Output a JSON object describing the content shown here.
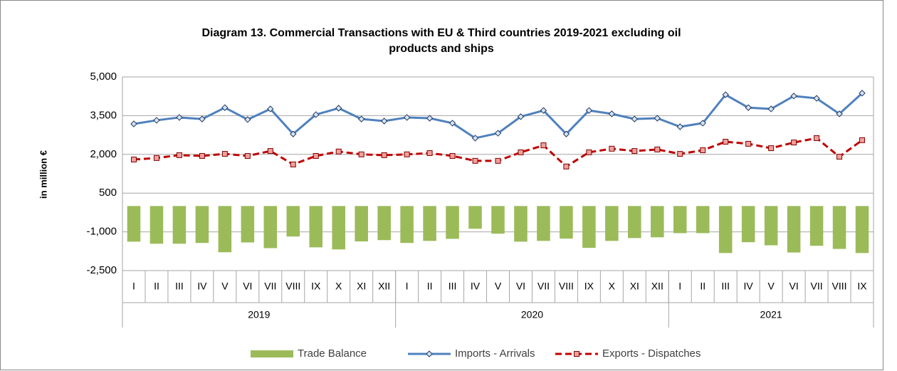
{
  "chart_data": {
    "type": "bar",
    "title": "Diagram 13. Commercial Transactions with EU & Third countries 2019-2021  excluding oil products and ships",
    "ylabel": "in million €",
    "category_groups": [
      {
        "label": "2019",
        "categories": [
          "I",
          "II",
          "III",
          "IV",
          "V",
          "VI",
          "VII",
          "VIII",
          "IX",
          "X",
          "XI",
          "XII"
        ]
      },
      {
        "label": "2020",
        "categories": [
          "I",
          "II",
          "III",
          "IV",
          "V",
          "VI",
          "VII",
          "VIII",
          "IX",
          "X",
          "XI",
          "XII"
        ]
      },
      {
        "label": "2021",
        "categories": [
          "I",
          "II",
          "III",
          "IV",
          "V",
          "VI",
          "VII",
          "VIII",
          "IX"
        ]
      }
    ],
    "ylim": [
      -2500,
      5000
    ],
    "yticks": [
      {
        "value": -2500,
        "label": "-2,500"
      },
      {
        "value": -1000,
        "label": "-1,000"
      },
      500,
      {
        "value": 2000,
        "label": "2,000"
      },
      {
        "value": 3500,
        "label": "3,500"
      },
      {
        "value": 5000,
        "label": "5,000"
      }
    ],
    "grid": true,
    "legend": "bottom",
    "series": [
      {
        "name": "Trade Balance",
        "type": "bar",
        "color": "#9bbb59",
        "values": [
          -1380,
          -1460,
          -1460,
          -1430,
          -1790,
          -1410,
          -1630,
          -1180,
          -1600,
          -1680,
          -1370,
          -1320,
          -1430,
          -1350,
          -1270,
          -880,
          -1070,
          -1380,
          -1350,
          -1260,
          -1620,
          -1350,
          -1240,
          -1210,
          -1050,
          -1050,
          -1820,
          -1400,
          -1520,
          -1800,
          -1540,
          -1660,
          -1820
        ]
      },
      {
        "name": "Imports - Arrivals",
        "type": "line",
        "color": "#4f81bd",
        "values": [
          3180,
          3320,
          3430,
          3370,
          3810,
          3350,
          3760,
          2790,
          3540,
          3790,
          3370,
          3290,
          3430,
          3400,
          3210,
          2630,
          2820,
          3460,
          3700,
          2790,
          3700,
          3570,
          3370,
          3400,
          3070,
          3210,
          4310,
          3810,
          3760,
          4260,
          4170,
          3570,
          4370
        ]
      },
      {
        "name": "Exports - Dispatches",
        "type": "dashed-line",
        "color": "#c00000",
        "values": [
          1800,
          1860,
          1970,
          1940,
          2020,
          1940,
          2130,
          1610,
          1940,
          2110,
          2000,
          1970,
          2000,
          2050,
          1940,
          1750,
          1750,
          2080,
          2350,
          1530,
          2080,
          2220,
          2130,
          2190,
          2020,
          2160,
          2490,
          2410,
          2240,
          2460,
          2630,
          1910,
          2550
        ]
      }
    ]
  }
}
